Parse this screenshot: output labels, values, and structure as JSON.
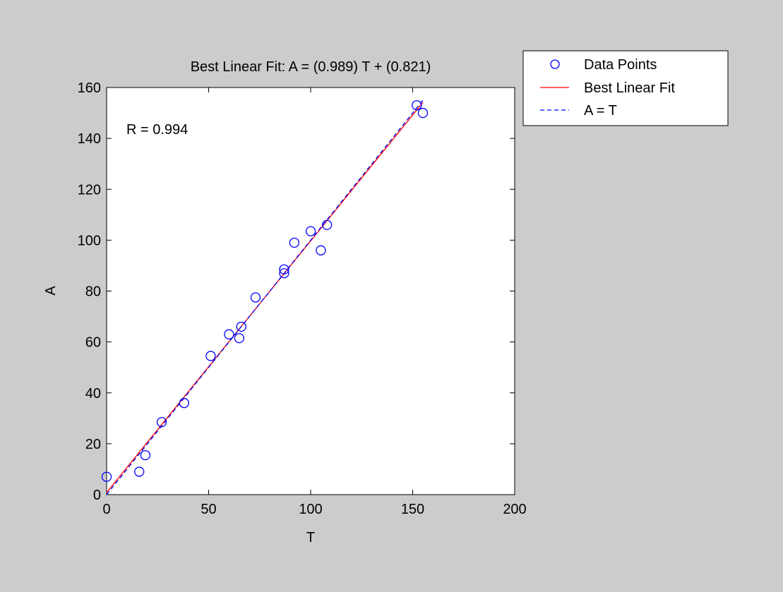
{
  "chart_data": {
    "type": "scatter",
    "title": "Best Linear Fit:  A = (0.989) T + (0.821)",
    "xlabel": "T",
    "ylabel": "A",
    "xlim": [
      0,
      200
    ],
    "ylim": [
      0,
      160
    ],
    "xticks": [
      0,
      50,
      100,
      150,
      200
    ],
    "yticks": [
      0,
      20,
      40,
      60,
      80,
      100,
      120,
      140,
      160
    ],
    "annotation": "R = 0.994",
    "grid": false,
    "legend_position": "outside top-right",
    "legend": [
      {
        "label": "Data Points",
        "style": "marker-circle",
        "color": "#0000ff"
      },
      {
        "label": "Best Linear Fit",
        "style": "solid-line",
        "color": "#ff0000"
      },
      {
        "label": "A = T",
        "style": "dashed-line",
        "color": "#0000ff"
      }
    ],
    "series": [
      {
        "name": "Data Points",
        "kind": "scatter",
        "marker": "circle",
        "color": "#0000ff",
        "points": [
          [
            0,
            7
          ],
          [
            16,
            9
          ],
          [
            19,
            15.5
          ],
          [
            27,
            28.5
          ],
          [
            38,
            36
          ],
          [
            51,
            54.5
          ],
          [
            60,
            63
          ],
          [
            65,
            61.5
          ],
          [
            66,
            66
          ],
          [
            73,
            77.5
          ],
          [
            87,
            87
          ],
          [
            87,
            88.5
          ],
          [
            92,
            99
          ],
          [
            100,
            103.5
          ],
          [
            105,
            96
          ],
          [
            108,
            106
          ],
          [
            152,
            153
          ],
          [
            155,
            150
          ]
        ]
      },
      {
        "name": "Best Linear Fit",
        "kind": "line",
        "style": "solid",
        "color": "#ff0000",
        "slope": 0.989,
        "intercept": 0.821,
        "x_range": [
          0,
          155
        ]
      },
      {
        "name": "A = T",
        "kind": "line",
        "style": "dashed",
        "color": "#0000ff",
        "slope": 1,
        "intercept": 0,
        "x_range": [
          0,
          155
        ]
      }
    ]
  }
}
